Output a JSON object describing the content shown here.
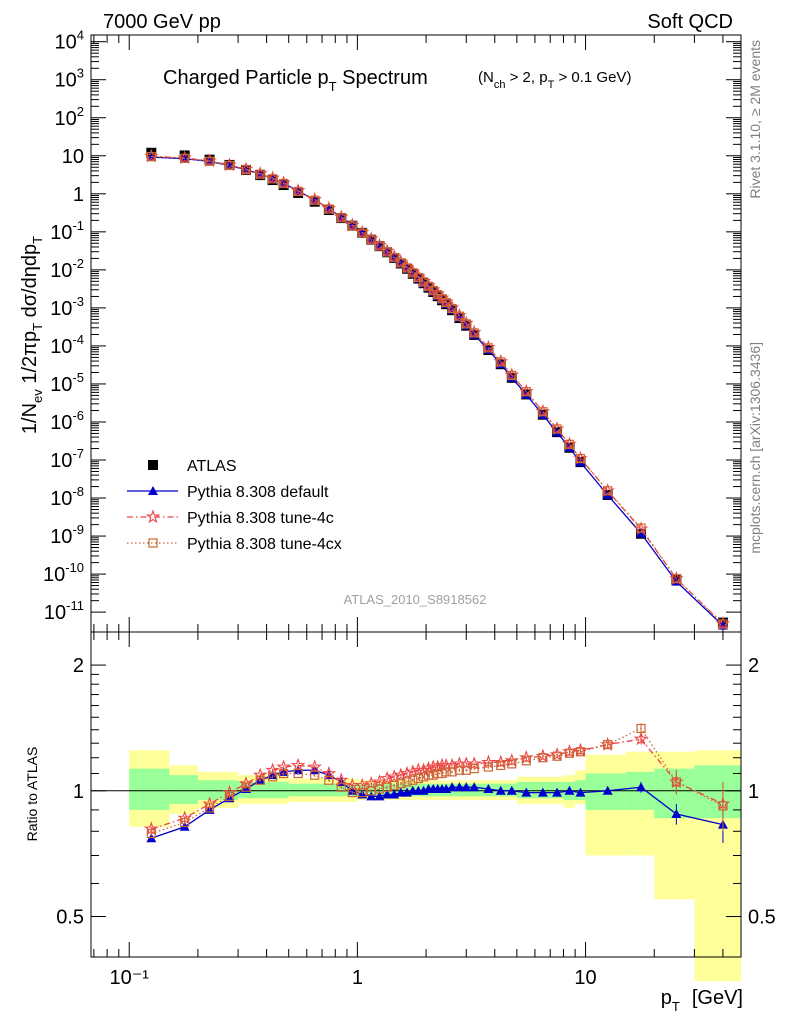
{
  "header": {
    "left": "7000 GeV pp",
    "right": "Soft QCD"
  },
  "side_labels": {
    "rivet": "Rivet 3.1.10, ≥ 2M events",
    "source": "mcplots.cern.ch [arXiv:1306.3436]"
  },
  "chart_data": [
    {
      "type": "scatter",
      "title": "Charged Particle pT Spectrum",
      "title_parts": {
        "main": "Charged Particle p",
        "sub": "T",
        "rest": " Spectrum"
      },
      "subtitle_parts": [
        "(N",
        "ch",
        " > 2, p",
        "T",
        " > 0.1 GeV)"
      ],
      "analysis_id": "ATLAS_2010_S8918562",
      "ylabel_text": "1/N_ev 1/2πp_T dσ/dηdp_T",
      "xscale": "log",
      "yscale": "log",
      "xlim": [
        0.068,
        48
      ],
      "ylim": [
        3e-12,
        15000
      ],
      "xlabel": {
        "main": "p",
        "sub": "T",
        "unit": "[GeV]"
      },
      "x_tick_labels": {
        "0.1": "10⁻¹",
        "1": "1",
        "10": "10"
      },
      "y_tick_exponents": [
        -11,
        -10,
        -9,
        -8,
        -7,
        -6,
        -5,
        -4,
        -3,
        -2,
        -1,
        0,
        1,
        2,
        3,
        4
      ],
      "legend_position": "bottom-left",
      "x": [
        0.125,
        0.175,
        0.225,
        0.275,
        0.325,
        0.375,
        0.425,
        0.475,
        0.55,
        0.65,
        0.75,
        0.85,
        0.95,
        1.05,
        1.15,
        1.25,
        1.35,
        1.45,
        1.55,
        1.65,
        1.75,
        1.85,
        1.95,
        2.05,
        2.15,
        2.25,
        2.35,
        2.45,
        2.6,
        2.8,
        3.0,
        3.25,
        3.75,
        4.25,
        4.75,
        5.5,
        6.5,
        7.5,
        8.5,
        9.5,
        12.5,
        17.5,
        25,
        40
      ],
      "series": [
        {
          "name": "ATLAS",
          "color": "#000000",
          "marker": "square",
          "values": [
            12.0,
            10.2,
            7.9,
            5.75,
            4.25,
            3.1,
            2.3,
            1.7,
            1.05,
            0.62,
            0.375,
            0.23,
            0.145,
            0.094,
            0.062,
            0.042,
            0.029,
            0.0205,
            0.0147,
            0.0107,
            0.0079,
            0.0059,
            0.00445,
            0.0034,
            0.00262,
            0.00203,
            0.00159,
            0.00125,
            0.00087,
            0.00054,
            0.00034,
            0.000195,
            7.8e-05,
            3.3e-05,
            1.45e-05,
            5.3e-06,
            1.55e-06,
            5.4e-07,
            2.1e-07,
            8.8e-08,
            1.2e-08,
            1.15e-09,
            7.2e-11,
            5.3e-12
          ]
        },
        {
          "name": "Pythia 8.308 default",
          "color": "#0000cc",
          "marker": "triangle",
          "line": "solid",
          "ratio": [
            0.77,
            0.82,
            0.9,
            0.96,
            1.01,
            1.06,
            1.09,
            1.11,
            1.12,
            1.12,
            1.09,
            1.05,
            1.0,
            0.98,
            0.97,
            0.97,
            0.98,
            0.98,
            0.99,
            0.99,
            1.0,
            1.0,
            1.0,
            1.01,
            1.01,
            1.01,
            1.01,
            1.01,
            1.02,
            1.02,
            1.02,
            1.02,
            1.01,
            1.0,
            1.0,
            0.99,
            0.99,
            0.99,
            1.0,
            0.99,
            1.0,
            1.02,
            0.88,
            0.83
          ],
          "ratio_err": [
            0.01,
            0.01,
            0.01,
            0.01,
            0.01,
            0.01,
            0.01,
            0.01,
            0.01,
            0.01,
            0.01,
            0.01,
            0.01,
            0.01,
            0.01,
            0.01,
            0.01,
            0.01,
            0.01,
            0.01,
            0.01,
            0.01,
            0.01,
            0.01,
            0.01,
            0.01,
            0.01,
            0.01,
            0.01,
            0.01,
            0.01,
            0.01,
            0.01,
            0.01,
            0.01,
            0.01,
            0.01,
            0.01,
            0.01,
            0.01,
            0.01,
            0.03,
            0.05,
            0.08
          ]
        },
        {
          "name": "Pythia 8.308 tune-4c",
          "color": "#ee4444",
          "marker": "star",
          "line": "dashdot",
          "ratio": [
            0.81,
            0.86,
            0.93,
            0.99,
            1.04,
            1.09,
            1.12,
            1.14,
            1.15,
            1.14,
            1.1,
            1.06,
            1.03,
            1.03,
            1.04,
            1.05,
            1.07,
            1.08,
            1.09,
            1.1,
            1.11,
            1.12,
            1.12,
            1.13,
            1.14,
            1.14,
            1.15,
            1.15,
            1.15,
            1.16,
            1.16,
            1.16,
            1.17,
            1.17,
            1.18,
            1.2,
            1.21,
            1.22,
            1.24,
            1.25,
            1.29,
            1.33,
            1.05,
            0.93
          ],
          "ratio_err": [
            0.01,
            0.01,
            0.01,
            0.01,
            0.01,
            0.01,
            0.01,
            0.01,
            0.01,
            0.01,
            0.01,
            0.01,
            0.01,
            0.01,
            0.01,
            0.01,
            0.01,
            0.01,
            0.01,
            0.01,
            0.01,
            0.01,
            0.01,
            0.01,
            0.01,
            0.01,
            0.01,
            0.01,
            0.01,
            0.01,
            0.01,
            0.01,
            0.01,
            0.01,
            0.01,
            0.01,
            0.01,
            0.01,
            0.02,
            0.02,
            0.02,
            0.04,
            0.07,
            0.12
          ]
        },
        {
          "name": "Pythia 8.308 tune-4cx",
          "color": "#cc6633",
          "marker": "open-square",
          "line": "dotted",
          "ratio": [
            0.79,
            0.84,
            0.91,
            0.97,
            1.02,
            1.06,
            1.08,
            1.1,
            1.1,
            1.09,
            1.06,
            1.02,
            0.99,
            0.99,
            1.0,
            1.01,
            1.02,
            1.03,
            1.04,
            1.05,
            1.06,
            1.07,
            1.08,
            1.09,
            1.09,
            1.1,
            1.1,
            1.11,
            1.11,
            1.12,
            1.12,
            1.13,
            1.14,
            1.15,
            1.16,
            1.18,
            1.2,
            1.21,
            1.23,
            1.24,
            1.29,
            1.41,
            1.05,
            0.92
          ],
          "ratio_err": [
            0.01,
            0.01,
            0.01,
            0.01,
            0.01,
            0.01,
            0.01,
            0.01,
            0.01,
            0.01,
            0.01,
            0.01,
            0.01,
            0.01,
            0.01,
            0.01,
            0.01,
            0.01,
            0.01,
            0.01,
            0.01,
            0.01,
            0.01,
            0.01,
            0.01,
            0.01,
            0.01,
            0.01,
            0.01,
            0.01,
            0.01,
            0.01,
            0.01,
            0.01,
            0.01,
            0.01,
            0.01,
            0.01,
            0.02,
            0.02,
            0.02,
            0.04,
            0.07,
            0.12
          ]
        }
      ]
    },
    {
      "type": "scatter",
      "ylabel": "Ratio to ATLAS",
      "xscale": "log",
      "yscale": "log",
      "xlim": [
        0.068,
        48
      ],
      "ylim": [
        0.4,
        2.4
      ],
      "reference_line": 1,
      "y_ticks": [
        {
          "value": 0.5,
          "label": "0.5"
        },
        {
          "value": 1,
          "label": "1"
        },
        {
          "value": 2,
          "label": "2"
        }
      ],
      "uncertainty_bands": [
        {
          "x_low": 0.1,
          "x_high": 0.15,
          "stat_low": 0.9,
          "stat_high": 1.13,
          "total_low": 0.82,
          "total_high": 1.25
        },
        {
          "x_low": 0.15,
          "x_high": 0.2,
          "stat_low": 0.93,
          "stat_high": 1.09,
          "total_low": 0.88,
          "total_high": 1.15
        },
        {
          "x_low": 0.2,
          "x_high": 0.3,
          "stat_low": 0.95,
          "stat_high": 1.06,
          "total_low": 0.91,
          "total_high": 1.11
        },
        {
          "x_low": 0.3,
          "x_high": 0.5,
          "stat_low": 0.96,
          "stat_high": 1.05,
          "total_low": 0.93,
          "total_high": 1.09
        },
        {
          "x_low": 0.5,
          "x_high": 1.0,
          "stat_low": 0.97,
          "stat_high": 1.04,
          "total_low": 0.94,
          "total_high": 1.07
        },
        {
          "x_low": 1.0,
          "x_high": 5.0,
          "stat_low": 0.97,
          "stat_high": 1.04,
          "total_low": 0.95,
          "total_high": 1.06
        },
        {
          "x_low": 5.0,
          "x_high": 8.0,
          "stat_low": 0.96,
          "stat_high": 1.05,
          "total_low": 0.93,
          "total_high": 1.08
        },
        {
          "x_low": 8.0,
          "x_high": 9.0,
          "stat_low": 0.95,
          "stat_high": 1.05,
          "total_low": 0.91,
          "total_high": 1.09
        },
        {
          "x_low": 9.0,
          "x_high": 10.0,
          "stat_low": 0.95,
          "stat_high": 1.06,
          "total_low": 0.93,
          "total_high": 1.12
        },
        {
          "x_low": 10.0,
          "x_high": 15.0,
          "stat_low": 0.9,
          "stat_high": 1.1,
          "total_low": 0.7,
          "total_high": 1.22
        },
        {
          "x_low": 15.0,
          "x_high": 20.0,
          "stat_low": 0.9,
          "stat_high": 1.11,
          "total_low": 0.7,
          "total_high": 1.24
        },
        {
          "x_low": 20.0,
          "x_high": 30.0,
          "stat_low": 0.86,
          "stat_high": 1.13,
          "total_low": 0.55,
          "total_high": 1.24
        },
        {
          "x_low": 30.0,
          "x_high": 48.0,
          "stat_low": 0.86,
          "stat_high": 1.15,
          "total_low": 0.35,
          "total_high": 1.25
        }
      ]
    }
  ]
}
